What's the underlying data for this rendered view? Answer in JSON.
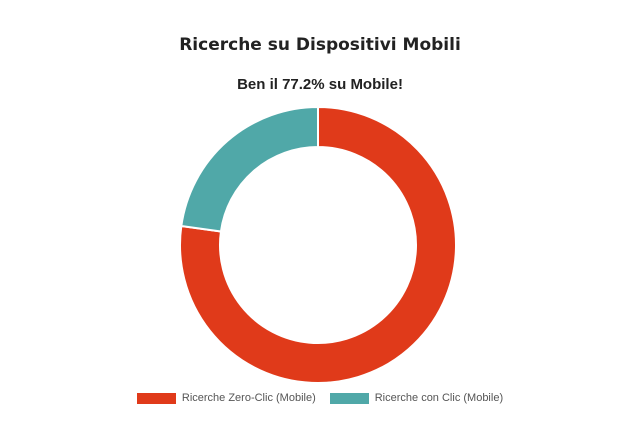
{
  "chart_data": {
    "type": "pie",
    "title": "Ricerche su Dispositivi Mobili",
    "subtitle": "Ben il 77.2% su Mobile!",
    "donut": true,
    "legend_position": "bottom",
    "series": [
      {
        "name": "Ricerche Zero-Clic (Mobile)",
        "value": 77.2,
        "color": "#e03a1a"
      },
      {
        "name": "Ricerche con Clic (Mobile)",
        "value": 22.8,
        "color": "#50a8a8"
      }
    ]
  }
}
